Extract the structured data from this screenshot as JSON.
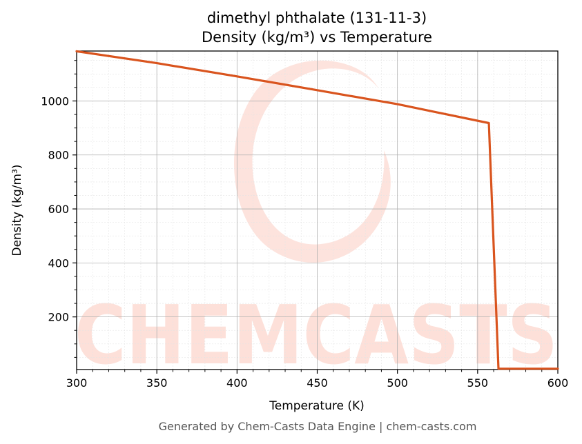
{
  "chart_data": {
    "type": "line",
    "title": "dimethyl phthalate (131-11-3)",
    "subtitle": "Density (kg/m³) vs Temperature",
    "xlabel": "Temperature (K)",
    "ylabel": "Density (kg/m³)",
    "xlim": [
      300,
      600
    ],
    "ylim": [
      5,
      1185
    ],
    "x_ticks": [
      300,
      350,
      400,
      450,
      500,
      550,
      600
    ],
    "y_ticks": [
      200,
      400,
      600,
      800,
      1000
    ],
    "grid": true,
    "series": [
      {
        "color": "#d9541e",
        "x": [
          300,
          350,
          400,
          450,
          500,
          557,
          563,
          600
        ],
        "y": [
          1184,
          1140,
          1091,
          1040,
          988,
          918,
          8,
          8
        ]
      }
    ]
  },
  "watermark": {
    "text": "CHEMCASTS",
    "color": "#fde0d9"
  },
  "footer": "Generated by Chem-Casts Data Engine | chem-casts.com"
}
